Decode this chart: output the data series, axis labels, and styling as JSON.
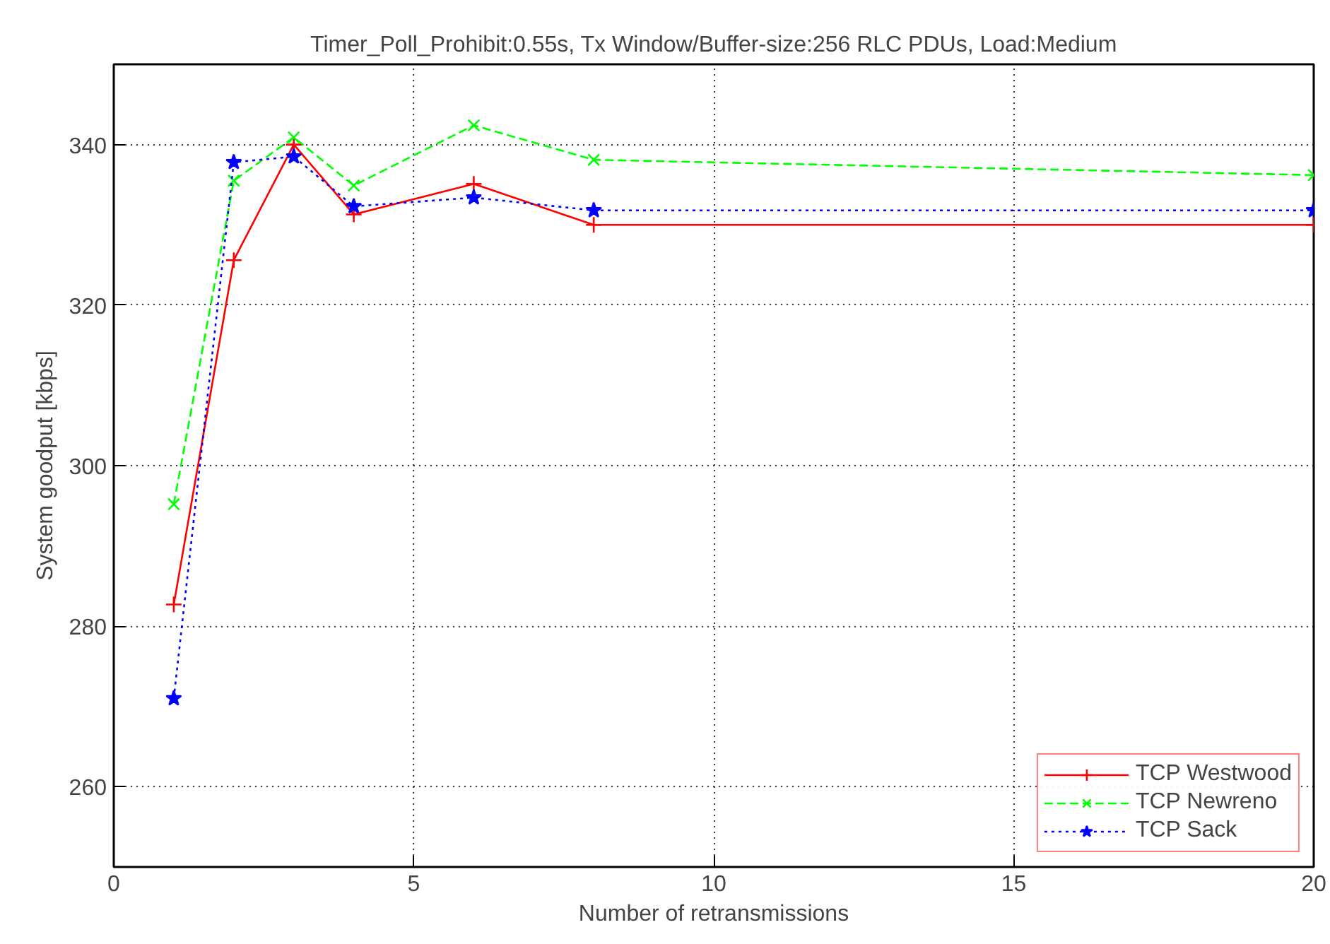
{
  "chart_data": {
    "type": "line",
    "title": "Timer_Poll_Prohibit:0.55s, Tx Window/Buffer-size:256 RLC PDUs, Load:Medium",
    "xlabel": "Number of retransmissions",
    "ylabel": "System goodput [kbps]",
    "x": [
      1,
      2,
      3,
      4,
      6,
      8,
      20
    ],
    "series": [
      {
        "name": "TCP Westwood",
        "color": "#ff0000",
        "marker": "cross",
        "line_style": "solid",
        "values": [
          282.7,
          325.6,
          340.0,
          331.3,
          335.1,
          330.0,
          330.0
        ]
      },
      {
        "name": "TCP Newreno",
        "color": "#00ff00",
        "marker": "x",
        "line_style": "dashed",
        "values": [
          295.2,
          335.5,
          340.9,
          334.9,
          342.4,
          338.1,
          336.2
        ]
      },
      {
        "name": "TCP Sack",
        "color": "#0000ff",
        "marker": "star",
        "line_style": "dotted",
        "values": [
          271.0,
          337.8,
          338.5,
          332.3,
          333.4,
          331.8,
          331.8
        ]
      }
    ],
    "xlim": [
      0,
      20
    ],
    "xticks": [
      0,
      5,
      10,
      15,
      20
    ],
    "ylim": [
      250,
      350
    ],
    "yticks": [
      260,
      280,
      300,
      320,
      340
    ],
    "grid": true,
    "legend": "bottom right"
  }
}
